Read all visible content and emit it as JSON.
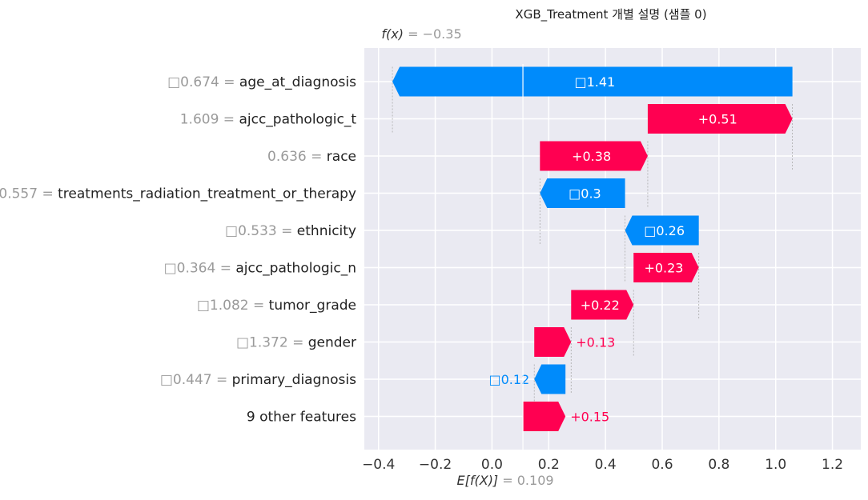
{
  "chart_data": {
    "type": "waterfall",
    "title": "XGB_Treatment 개별 설명 (샘플 0)",
    "fx_label": "f(x)",
    "fx_value_text": " = −0.35",
    "fx_value": -0.35,
    "base_label": "E[f(X)]",
    "base_value_text": " = 0.109",
    "base_value": 0.109,
    "xlim": [
      -0.45,
      1.3
    ],
    "xticks": [
      -0.4,
      -0.2,
      0.0,
      0.2,
      0.4,
      0.6,
      0.8,
      1.0,
      1.2
    ],
    "xtick_labels": [
      "−0.4",
      "−0.2",
      "0.0",
      "0.2",
      "0.4",
      "0.6",
      "0.8",
      "1.0",
      "1.2"
    ],
    "grid": true,
    "colors": {
      "positive": "#ff0051",
      "negative": "#008bfb",
      "background": "#eaeaf2",
      "grid": "#ffffff"
    },
    "rows": [
      {
        "value_text": "□0.674",
        "feature": "age_at_diagnosis",
        "start": 1.059,
        "end": -0.351,
        "contribution": -1.41,
        "label": "□1.41",
        "sign": "negative"
      },
      {
        "value_text": "1.609",
        "feature": "ajcc_pathologic_t",
        "start": 0.549,
        "end": 1.059,
        "contribution": 0.51,
        "label": "+0.51",
        "sign": "positive"
      },
      {
        "value_text": "0.636",
        "feature": "race",
        "start": 0.169,
        "end": 0.549,
        "contribution": 0.38,
        "label": "+0.38",
        "sign": "positive"
      },
      {
        "value_text": "0.557",
        "feature": "treatments_radiation_treatment_or_therapy",
        "start": 0.469,
        "end": 0.169,
        "contribution": -0.3,
        "label": "□0.3",
        "sign": "negative"
      },
      {
        "value_text": "□0.533",
        "feature": "ethnicity",
        "start": 0.729,
        "end": 0.469,
        "contribution": -0.26,
        "label": "□0.26",
        "sign": "negative"
      },
      {
        "value_text": "□0.364",
        "feature": "ajcc_pathologic_n",
        "start": 0.499,
        "end": 0.729,
        "contribution": 0.23,
        "label": "+0.23",
        "sign": "positive"
      },
      {
        "value_text": "□1.082",
        "feature": "tumor_grade",
        "start": 0.279,
        "end": 0.499,
        "contribution": 0.22,
        "label": "+0.22",
        "sign": "positive"
      },
      {
        "value_text": "□1.372",
        "feature": "gender",
        "start": 0.149,
        "end": 0.279,
        "contribution": 0.13,
        "label": "+0.13",
        "sign": "positive"
      },
      {
        "value_text": "□0.447",
        "feature": "primary_diagnosis",
        "start": 0.259,
        "end": 0.149,
        "contribution": -0.12,
        "label": "□0.12",
        "sign": "negative"
      },
      {
        "value_text": "9",
        "feature": "other features",
        "start": 0.109,
        "end": 0.259,
        "contribution": 0.15,
        "label": "+0.15",
        "sign": "positive"
      }
    ]
  }
}
